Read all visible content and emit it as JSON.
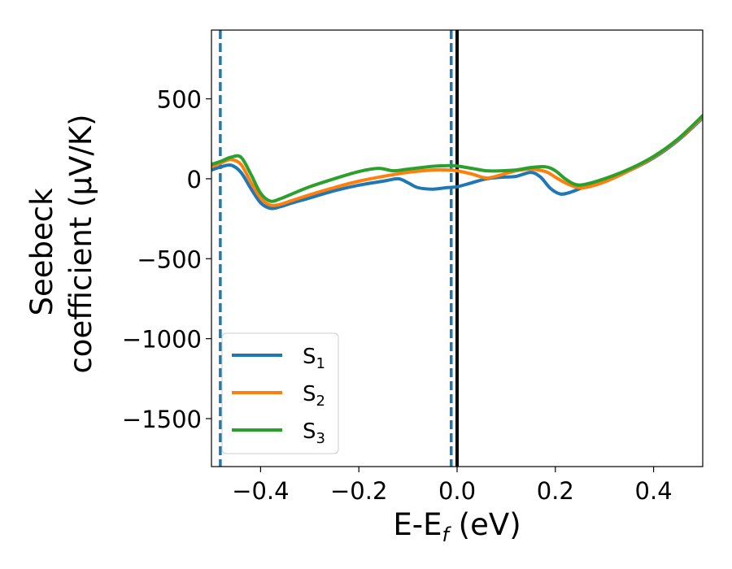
{
  "chart_data": {
    "type": "line",
    "xlabel": "E-E",
    "xlabel_sub": "f",
    "xlabel_unit": " (eV)",
    "ylabel_line1": "Seebeck",
    "ylabel_line2": "coefficient  (μV/K)",
    "xlim": [
      -0.5,
      0.5
    ],
    "ylim": [
      -1800,
      930
    ],
    "xticks": [
      -0.4,
      -0.2,
      0.0,
      0.2,
      0.4
    ],
    "xtick_labels": [
      "−0.4",
      "−0.2",
      "0.0",
      "0.2",
      "0.4"
    ],
    "yticks": [
      500,
      0,
      -500,
      -1000,
      -1500
    ],
    "ytick_labels": [
      "500",
      "0",
      "−500",
      "−1000",
      "−1500"
    ],
    "vlines": [
      {
        "x": -0.482,
        "style": "dashed",
        "color": "#1f77b4"
      },
      {
        "x": -0.012,
        "style": "dashed",
        "color": "#1f77b4"
      },
      {
        "x": 0.0,
        "style": "solid",
        "color": "#000000"
      }
    ],
    "legend_position": "lower-left",
    "series": [
      {
        "name": "S",
        "sub": "1",
        "color": "#1f77b4",
        "x": [
          -0.5,
          -0.48,
          -0.46,
          -0.44,
          -0.42,
          -0.4,
          -0.38,
          -0.36,
          -0.34,
          -0.3,
          -0.25,
          -0.2,
          -0.15,
          -0.12,
          -0.1,
          -0.08,
          -0.05,
          -0.02,
          0.0,
          0.03,
          0.06,
          0.09,
          0.12,
          0.15,
          0.17,
          0.19,
          0.21,
          0.23,
          0.26,
          0.3,
          0.35,
          0.4,
          0.45,
          0.5
        ],
        "y": [
          55,
          75,
          85,
          40,
          -60,
          -150,
          -185,
          -175,
          -155,
          -120,
          -75,
          -40,
          -15,
          0,
          -25,
          -55,
          -65,
          -55,
          -50,
          -25,
          0,
          10,
          15,
          40,
          10,
          -60,
          -95,
          -85,
          -50,
          -10,
          50,
          130,
          240,
          380
        ]
      },
      {
        "name": "S",
        "sub": "2",
        "color": "#ff7f0e",
        "x": [
          -0.5,
          -0.48,
          -0.46,
          -0.44,
          -0.42,
          -0.4,
          -0.38,
          -0.36,
          -0.34,
          -0.3,
          -0.25,
          -0.2,
          -0.15,
          -0.1,
          -0.05,
          -0.02,
          0.0,
          0.03,
          0.06,
          0.09,
          0.12,
          0.15,
          0.18,
          0.2,
          0.22,
          0.24,
          0.26,
          0.3,
          0.35,
          0.4,
          0.45,
          0.5
        ],
        "y": [
          75,
          100,
          120,
          90,
          -20,
          -120,
          -165,
          -160,
          -140,
          -100,
          -55,
          -15,
          15,
          40,
          55,
          55,
          50,
          30,
          5,
          25,
          50,
          60,
          45,
          10,
          -25,
          -50,
          -55,
          -20,
          50,
          135,
          245,
          385
        ]
      },
      {
        "name": "S",
        "sub": "3",
        "color": "#2ca02c",
        "x": [
          -0.5,
          -0.48,
          -0.46,
          -0.44,
          -0.42,
          -0.4,
          -0.38,
          -0.36,
          -0.34,
          -0.3,
          -0.25,
          -0.2,
          -0.16,
          -0.13,
          -0.1,
          -0.05,
          -0.02,
          0.0,
          0.03,
          0.06,
          0.09,
          0.12,
          0.15,
          0.18,
          0.2,
          0.22,
          0.24,
          0.26,
          0.3,
          0.35,
          0.4,
          0.45,
          0.5
        ],
        "y": [
          90,
          110,
          135,
          135,
          30,
          -90,
          -140,
          -125,
          -100,
          -50,
          0,
          45,
          65,
          50,
          60,
          78,
          82,
          80,
          65,
          50,
          50,
          55,
          70,
          75,
          50,
          0,
          -35,
          -35,
          0,
          60,
          140,
          250,
          395
        ]
      }
    ]
  }
}
